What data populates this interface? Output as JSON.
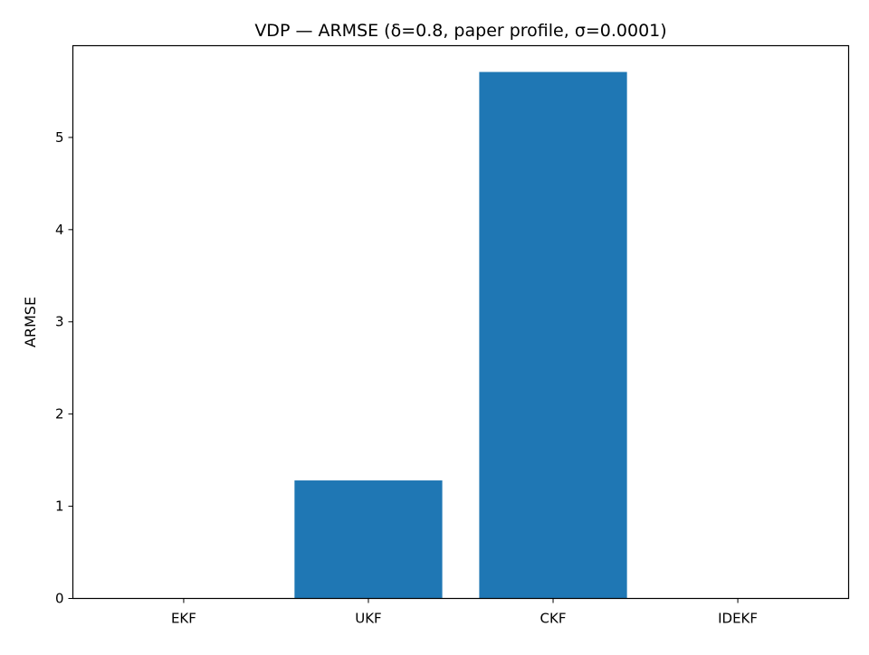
{
  "chart_data": {
    "type": "bar",
    "title": "VDP — ARMSE (δ=0.8, paper profile, σ=0.0001)",
    "xlabel": "",
    "ylabel": "ARMSE",
    "categories": [
      "EKF",
      "UKF",
      "CKF",
      "IDEKF"
    ],
    "values": [
      0.0002,
      1.28,
      5.71,
      0.0002
    ],
    "ylim": [
      0,
      5.995
    ],
    "yticks": [
      0,
      1,
      2,
      3,
      4,
      5
    ],
    "grid": false,
    "bar_color": "#1f77b4"
  }
}
